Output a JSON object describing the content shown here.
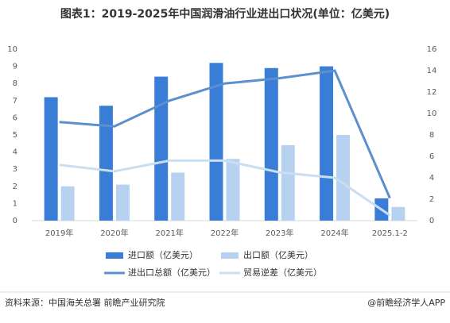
{
  "chart_data": {
    "type": "combo",
    "title": "图表1：2019-2025年中国润滑油行业进出口状况(单位：亿美元)",
    "categories": [
      "2019年",
      "2020年",
      "2021年",
      "2022年",
      "2023年",
      "2024年",
      "2025.1-2"
    ],
    "series": [
      {
        "name": "进口额（亿美元）",
        "type": "bar",
        "color": "#3a7dd6",
        "values": [
          7.2,
          6.7,
          8.4,
          9.2,
          8.9,
          9.0,
          1.3
        ]
      },
      {
        "name": "出口额（亿美元）",
        "type": "bar",
        "color": "#b7d1f0",
        "values": [
          2.0,
          2.1,
          2.8,
          3.6,
          4.4,
          5.0,
          0.8
        ]
      },
      {
        "name": "进出口总额（亿美元）",
        "type": "line",
        "axis": "y2",
        "color": "#5b8fcf",
        "values": [
          9.2,
          8.8,
          11.2,
          12.8,
          13.3,
          14.0,
          2.1
        ]
      },
      {
        "name": "贸易逆差（亿美元）",
        "type": "line",
        "axis": "y2",
        "color": "#c9def0",
        "values": [
          5.2,
          4.6,
          5.6,
          5.6,
          4.5,
          4.0,
          0.5
        ]
      }
    ],
    "ylim": [
      0,
      10
    ],
    "yticks": [
      0,
      1,
      2,
      3,
      4,
      5,
      6,
      7,
      8,
      9,
      10
    ],
    "y2lim": [
      0,
      16
    ],
    "y2ticks": [
      0,
      2,
      4,
      6,
      8,
      10,
      12,
      14,
      16
    ],
    "grid": false,
    "source": "资料来源：中国海关总署 前瞻产业研究院",
    "credit": "@前瞻经济学人APP"
  }
}
